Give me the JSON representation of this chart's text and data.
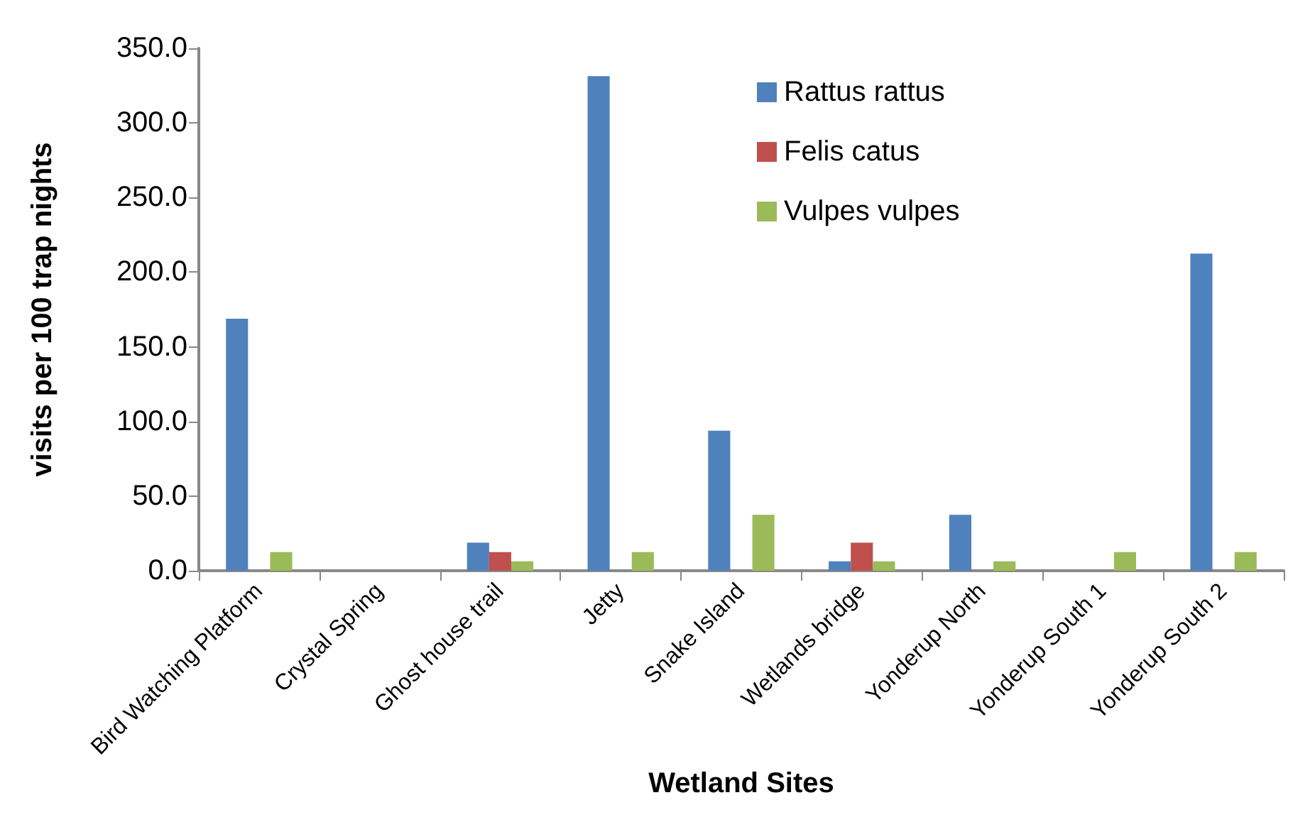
{
  "chart_data": {
    "type": "bar",
    "xlabel": "Wetland Sites",
    "ylabel": "visits per 100 trap nights",
    "categories": [
      "Bird Watching Platform",
      "Crystal Spring",
      "Ghost house trail",
      "Jetty",
      "Snake Island",
      "Wetlands bridge",
      "Yonderup North",
      "Yonderup South 1",
      "Yonderup South 2"
    ],
    "series": [
      {
        "name": "Rattus rattus",
        "color": "#4f81bd",
        "values": [
          168.8,
          0,
          18.8,
          331.3,
          93.8,
          6.3,
          37.5,
          0,
          212.5
        ]
      },
      {
        "name": "Felis catus",
        "color": "#c0504d",
        "values": [
          0,
          0,
          12.5,
          0,
          0,
          18.8,
          0,
          0,
          0
        ]
      },
      {
        "name": "Vulpes vulpes",
        "color": "#9bbb59",
        "values": [
          12.5,
          0,
          6.3,
          12.5,
          37.5,
          6.3,
          6.3,
          12.5,
          12.5
        ]
      }
    ],
    "ylim": [
      0,
      350
    ],
    "yticks": [
      {
        "value": 0,
        "label": "0.0"
      },
      {
        "value": 50,
        "label": "50.0"
      },
      {
        "value": 100,
        "label": "100.0"
      },
      {
        "value": 150,
        "label": "150.0"
      },
      {
        "value": 200,
        "label": "200.0"
      },
      {
        "value": 250,
        "label": "250.0"
      },
      {
        "value": 300,
        "label": "300.0"
      },
      {
        "value": 350,
        "label": "350.0"
      }
    ],
    "grid": false,
    "legend": "top right"
  }
}
